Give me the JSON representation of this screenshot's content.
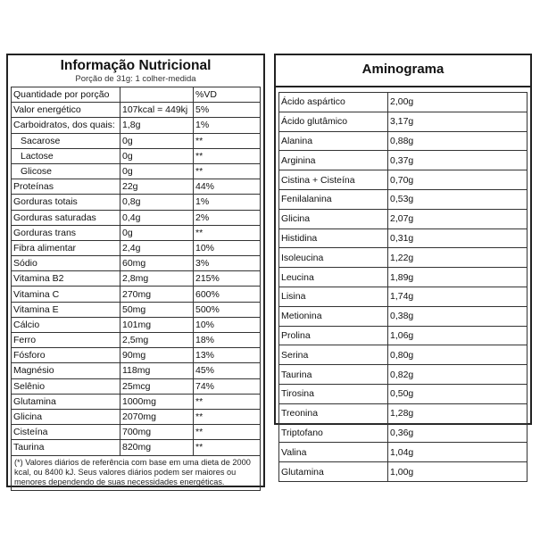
{
  "nutrition": {
    "title": "Informação Nutricional",
    "serving": "Porção de 31g: 1 colher-medida",
    "header": {
      "label": "Quantidade por porção",
      "amount": "",
      "dv": "%VD"
    },
    "rows": [
      {
        "label": "Valor energético",
        "amount": "107kcal = 449kj",
        "dv": "5%"
      },
      {
        "label": "Carboidratos, dos quais:",
        "amount": "1,8g",
        "dv": "1%"
      },
      {
        "label": "Sacarose",
        "amount": "0g",
        "dv": "**"
      },
      {
        "label": "Lactose",
        "amount": "0g",
        "dv": "**"
      },
      {
        "label": "Glicose",
        "amount": "0g",
        "dv": "**"
      },
      {
        "label": "Proteínas",
        "amount": "22g",
        "dv": "44%"
      },
      {
        "label": "Gorduras totais",
        "amount": "0,8g",
        "dv": "1%"
      },
      {
        "label": "Gorduras saturadas",
        "amount": "0,4g",
        "dv": "2%"
      },
      {
        "label": "Gorduras trans",
        "amount": "0g",
        "dv": "**"
      },
      {
        "label": "Fibra alimentar",
        "amount": "2,4g",
        "dv": "10%"
      },
      {
        "label": "Sódio",
        "amount": "60mg",
        "dv": "3%"
      },
      {
        "label": "Vitamina B2",
        "amount": "2,8mg",
        "dv": "215%"
      },
      {
        "label": "Vitamina C",
        "amount": "270mg",
        "dv": "600%"
      },
      {
        "label": "Vitamina E",
        "amount": "50mg",
        "dv": "500%"
      },
      {
        "label": "Cálcio",
        "amount": "101mg",
        "dv": "10%"
      },
      {
        "label": "Ferro",
        "amount": "2,5mg",
        "dv": "18%"
      },
      {
        "label": "Fósforo",
        "amount": "90mg",
        "dv": "13%"
      },
      {
        "label": "Magnésio",
        "amount": "118mg",
        "dv": "45%"
      },
      {
        "label": "Selênio",
        "amount": "25mcg",
        "dv": "74%"
      },
      {
        "label": "Glutamina",
        "amount": "1000mg",
        "dv": "**"
      },
      {
        "label": "Glicina",
        "amount": "2070mg",
        "dv": "**"
      },
      {
        "label": "Cisteína",
        "amount": "700mg",
        "dv": "**"
      },
      {
        "label": "Taurina",
        "amount": "820mg",
        "dv": "**"
      }
    ],
    "footnote": "(*) Valores diários de referência com base em uma dieta de 2000 kcal, ou 8400 kJ. Seus valores diários podem ser maiores ou menores dependendo de suas necessidades energéticas."
  },
  "aminogram": {
    "title": "Aminograma",
    "rows": [
      {
        "name": "Ácido aspártico",
        "value": "2,00g"
      },
      {
        "name": "Ácido glutâmico",
        "value": "3,17g"
      },
      {
        "name": "Alanina",
        "value": "0,88g"
      },
      {
        "name": "Arginina",
        "value": "0,37g"
      },
      {
        "name": "Cistina + Cisteína",
        "value": "0,70g"
      },
      {
        "name": "Fenilalanina",
        "value": "0,53g"
      },
      {
        "name": "Glicina",
        "value": "2,07g"
      },
      {
        "name": "Histidina",
        "value": "0,31g"
      },
      {
        "name": "Isoleucina",
        "value": "1,22g"
      },
      {
        "name": "Leucina",
        "value": "1,89g"
      },
      {
        "name": "Lisina",
        "value": "1,74g"
      },
      {
        "name": "Metionina",
        "value": "0,38g"
      },
      {
        "name": "Prolina",
        "value": "1,06g"
      },
      {
        "name": "Serina",
        "value": "0,80g"
      },
      {
        "name": "Taurina",
        "value": "0,82g"
      },
      {
        "name": "Tirosina",
        "value": "0,50g"
      },
      {
        "name": "Treonina",
        "value": "1,28g"
      },
      {
        "name": "Triptofano",
        "value": "0,36g"
      },
      {
        "name": "Valina",
        "value": "1,04g"
      },
      {
        "name": "Glutamina",
        "value": "1,00g"
      }
    ]
  }
}
